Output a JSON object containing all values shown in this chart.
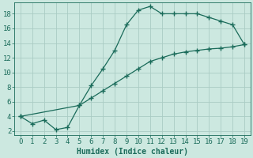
{
  "title": "",
  "xlabel": "Humidex (Indice chaleur)",
  "bg_color": "#cce8e0",
  "grid_color": "#aaccc4",
  "line_color": "#1a6b5a",
  "xlim": [
    -0.5,
    19.5
  ],
  "ylim": [
    1.5,
    19.5
  ],
  "xticks": [
    0,
    1,
    2,
    3,
    4,
    5,
    6,
    7,
    8,
    9,
    10,
    11,
    12,
    13,
    14,
    15,
    16,
    17,
    18,
    19
  ],
  "yticks": [
    2,
    4,
    6,
    8,
    10,
    12,
    14,
    16,
    18
  ],
  "line1_x": [
    0,
    1,
    2,
    3,
    4,
    5,
    6,
    7,
    8,
    9,
    10,
    11,
    12,
    13,
    14,
    15,
    16,
    17,
    18,
    19
  ],
  "line1_y": [
    4,
    3,
    3.5,
    2.2,
    2.5,
    5.5,
    8.2,
    10.5,
    13.0,
    16.5,
    18.5,
    19,
    18,
    18,
    18,
    18,
    17.5,
    17.0,
    16.5,
    13.8
  ],
  "line2_x": [
    0,
    5,
    6,
    7,
    8,
    9,
    10,
    11,
    12,
    13,
    14,
    15,
    16,
    17,
    18,
    19
  ],
  "line2_y": [
    4,
    5.5,
    6.5,
    7.5,
    8.5,
    9.5,
    10.5,
    11.5,
    12.0,
    12.5,
    12.8,
    13.0,
    13.2,
    13.3,
    13.5,
    13.8
  ],
  "font_size_label": 7,
  "tick_font_size": 6.5
}
